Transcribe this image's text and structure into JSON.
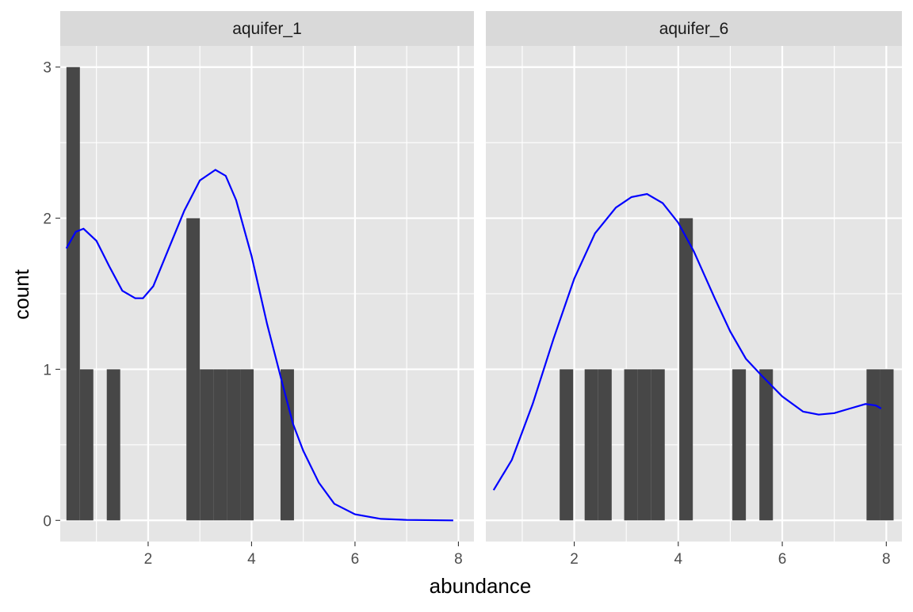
{
  "chart_data": {
    "type": "bar",
    "xlabel": "abundance",
    "ylabel": "count",
    "xlim": [
      0.3,
      8.3
    ],
    "ylim": [
      -0.14,
      3.14
    ],
    "x_ticks": [
      2,
      4,
      6,
      8
    ],
    "y_ticks": [
      0,
      1,
      2,
      3
    ],
    "grid": true,
    "colors": {
      "bar": "#474747",
      "density": "#0000ff",
      "panel_bg": "#e5e5e5",
      "strip_bg": "#d9d9d9",
      "grid": "#ffffff"
    },
    "panels": [
      {
        "label": "aquifer_1",
        "bins": [
          {
            "x0": 0.42,
            "x1": 0.68,
            "count": 3
          },
          {
            "x0": 0.68,
            "x1": 0.94,
            "count": 1
          },
          {
            "x0": 1.2,
            "x1": 1.46,
            "count": 1
          },
          {
            "x0": 2.74,
            "x1": 3.0,
            "count": 2
          },
          {
            "x0": 3.0,
            "x1": 3.26,
            "count": 1
          },
          {
            "x0": 3.26,
            "x1": 3.52,
            "count": 1
          },
          {
            "x0": 3.52,
            "x1": 3.78,
            "count": 1
          },
          {
            "x0": 3.78,
            "x1": 4.04,
            "count": 1
          },
          {
            "x0": 4.56,
            "x1": 4.82,
            "count": 1
          }
        ],
        "density": [
          [
            0.42,
            1.8
          ],
          [
            0.6,
            1.91
          ],
          [
            0.75,
            1.93
          ],
          [
            1.0,
            1.85
          ],
          [
            1.25,
            1.68
          ],
          [
            1.5,
            1.52
          ],
          [
            1.75,
            1.47
          ],
          [
            1.9,
            1.47
          ],
          [
            2.1,
            1.55
          ],
          [
            2.4,
            1.8
          ],
          [
            2.7,
            2.05
          ],
          [
            3.0,
            2.25
          ],
          [
            3.3,
            2.32
          ],
          [
            3.5,
            2.28
          ],
          [
            3.7,
            2.12
          ],
          [
            4.0,
            1.75
          ],
          [
            4.3,
            1.3
          ],
          [
            4.6,
            0.9
          ],
          [
            4.8,
            0.64
          ],
          [
            5.0,
            0.46
          ],
          [
            5.3,
            0.25
          ],
          [
            5.6,
            0.11
          ],
          [
            6.0,
            0.04
          ],
          [
            6.5,
            0.01
          ],
          [
            7.0,
            0.003
          ],
          [
            7.9,
            0.0
          ]
        ]
      },
      {
        "label": "aquifer_6",
        "bins": [
          {
            "x0": 1.72,
            "x1": 1.98,
            "count": 1
          },
          {
            "x0": 2.2,
            "x1": 2.46,
            "count": 1
          },
          {
            "x0": 2.46,
            "x1": 2.72,
            "count": 1
          },
          {
            "x0": 2.96,
            "x1": 3.22,
            "count": 1
          },
          {
            "x0": 3.22,
            "x1": 3.48,
            "count": 1
          },
          {
            "x0": 3.48,
            "x1": 3.74,
            "count": 1
          },
          {
            "x0": 4.02,
            "x1": 4.28,
            "count": 2
          },
          {
            "x0": 5.04,
            "x1": 5.3,
            "count": 1
          },
          {
            "x0": 5.56,
            "x1": 5.82,
            "count": 1
          },
          {
            "x0": 7.62,
            "x1": 7.88,
            "count": 1
          },
          {
            "x0": 7.88,
            "x1": 8.14,
            "count": 1
          }
        ],
        "density": [
          [
            0.45,
            0.2
          ],
          [
            0.8,
            0.4
          ],
          [
            1.2,
            0.77
          ],
          [
            1.6,
            1.2
          ],
          [
            2.0,
            1.6
          ],
          [
            2.4,
            1.9
          ],
          [
            2.8,
            2.07
          ],
          [
            3.1,
            2.14
          ],
          [
            3.4,
            2.16
          ],
          [
            3.7,
            2.1
          ],
          [
            4.0,
            1.97
          ],
          [
            4.3,
            1.78
          ],
          [
            4.7,
            1.47
          ],
          [
            5.0,
            1.25
          ],
          [
            5.3,
            1.07
          ],
          [
            5.6,
            0.96
          ],
          [
            6.0,
            0.82
          ],
          [
            6.4,
            0.72
          ],
          [
            6.7,
            0.7
          ],
          [
            7.0,
            0.71
          ],
          [
            7.3,
            0.74
          ],
          [
            7.6,
            0.77
          ],
          [
            7.8,
            0.76
          ],
          [
            7.9,
            0.74
          ]
        ]
      }
    ]
  }
}
